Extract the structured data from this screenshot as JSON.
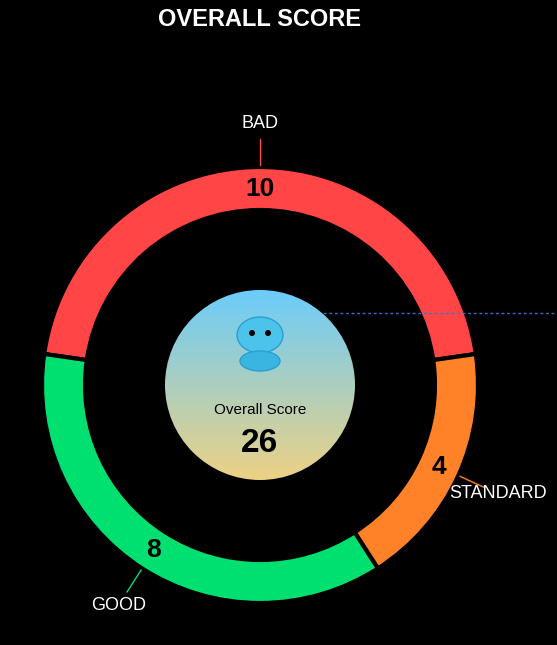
{
  "chart_data": {
    "type": "donut",
    "title": "OVERALL SCORE",
    "categories": [
      "BAD",
      "STANDARD",
      "GOOD"
    ],
    "values": [
      10,
      4,
      8
    ],
    "colors": [
      "#ff4545",
      "#ff8228",
      "#00e070"
    ],
    "data_labels": true,
    "center_label": "Overall Score",
    "center_value": 26
  }
}
